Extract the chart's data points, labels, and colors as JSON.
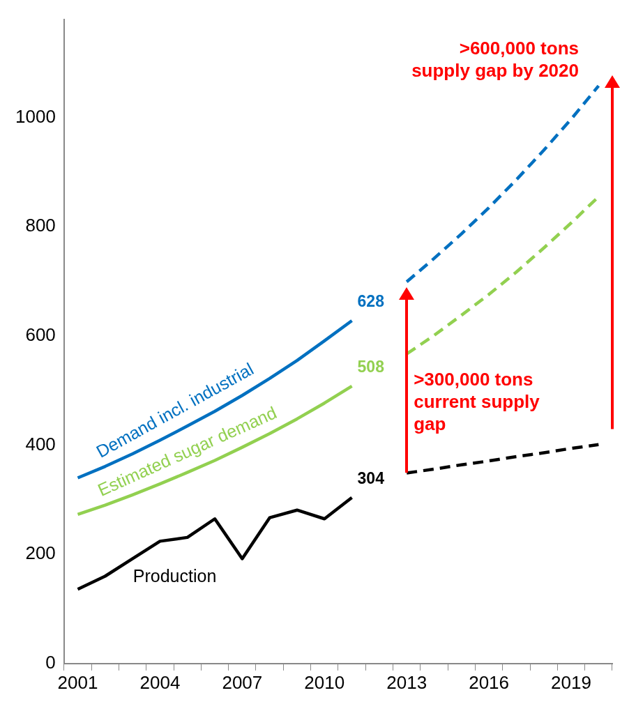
{
  "chart_data": {
    "type": "line",
    "categories": [
      "2001",
      null,
      null,
      "2004",
      null,
      null,
      "2007",
      null,
      null,
      "2010",
      null,
      null,
      "2013",
      null,
      null,
      "2016",
      null,
      null,
      "2019",
      null
    ],
    "series": [
      {
        "name": "Demand incl. industrial",
        "color": "#0070c0",
        "values": [
          340,
          361,
          384,
          409,
          435,
          462,
          491,
          522,
          555,
          591,
          628,
          null,
          null,
          null,
          null,
          null,
          null,
          null,
          null,
          null
        ],
        "value_labels": [
          null,
          null,
          null,
          null,
          null,
          null,
          null,
          null,
          null,
          null,
          "628",
          null,
          null,
          null,
          null,
          null,
          null,
          null,
          null,
          null
        ]
      },
      {
        "name": "Estimated sugar demand",
        "color": "#92d050",
        "values": [
          273,
          290,
          309,
          329,
          350,
          372,
          396,
          421,
          448,
          477,
          508,
          null,
          null,
          null,
          null,
          null,
          null,
          null,
          null,
          null
        ],
        "value_labels": [
          null,
          null,
          null,
          null,
          null,
          null,
          null,
          null,
          null,
          null,
          "508",
          null,
          null,
          null,
          null,
          null,
          null,
          null,
          null,
          null
        ]
      },
      {
        "name": "Production",
        "color": "#000000",
        "values": [
          136,
          160,
          192,
          224,
          231,
          265,
          192,
          267,
          281,
          265,
          304,
          null,
          null,
          null,
          null,
          null,
          null,
          null,
          null,
          null
        ],
        "value_labels": [
          null,
          null,
          null,
          null,
          null,
          null,
          null,
          null,
          null,
          null,
          "304",
          null,
          null,
          null,
          null,
          null,
          null,
          null,
          null,
          null
        ]
      },
      {
        "color": "#0070c0",
        "line_style": "dashed",
        "values": [
          null,
          null,
          null,
          null,
          null,
          null,
          null,
          null,
          null,
          null,
          null,
          null,
          699,
          742,
          787,
          835,
          886,
          940,
          997,
          1058
        ]
      },
      {
        "color": "#92d050",
        "line_style": "dashed",
        "values": [
          null,
          null,
          null,
          null,
          null,
          null,
          null,
          null,
          null,
          null,
          null,
          null,
          567,
          601,
          638,
          676,
          717,
          761,
          807,
          855
        ]
      },
      {
        "color": "#000000",
        "line_style": "dashed",
        "values": [
          null,
          null,
          null,
          null,
          null,
          null,
          null,
          null,
          null,
          null,
          null,
          null,
          349,
          356,
          364,
          371,
          379,
          386,
          394,
          401
        ]
      }
    ],
    "ylim": [
      0,
      1180
    ],
    "yticks": [
      0,
      200,
      400,
      600,
      800,
      1000
    ],
    "annotations": [
      ">600,000 tons supply gap by 2020",
      ">300,000 tons current supply gap"
    ]
  }
}
